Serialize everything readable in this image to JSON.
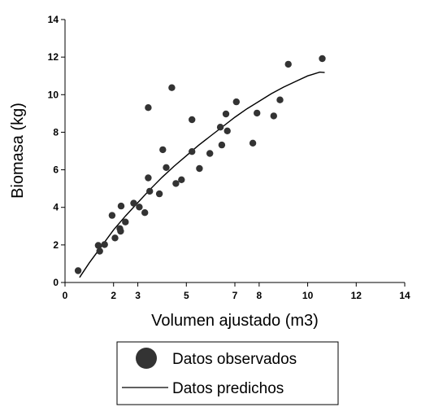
{
  "chart_data": {
    "type": "scatter",
    "title": "",
    "xlabel": "Volumen ajustado (m3)",
    "ylabel": "Biomasa (kg)",
    "xlim": [
      0,
      14
    ],
    "ylim": [
      0,
      14
    ],
    "x_ticks": [
      "0",
      "2",
      "3",
      "5",
      "7",
      "8",
      "10",
      "12",
      "14"
    ],
    "x_tick_values": [
      0,
      2,
      3,
      5,
      7,
      8,
      10,
      12,
      14
    ],
    "y_ticks": [
      "0",
      "2",
      "4",
      "6",
      "8",
      "10",
      "12",
      "14"
    ],
    "y_tick_values": [
      0,
      2,
      4,
      6,
      8,
      10,
      12,
      14
    ],
    "grid": false,
    "legend_position": "bottom-center",
    "series": [
      {
        "name": "Datos observados",
        "kind": "scatter",
        "color": "#333333",
        "points": [
          [
            0.54,
            0.63
          ],
          [
            1.37,
            1.97
          ],
          [
            1.43,
            1.67
          ],
          [
            1.63,
            2.02
          ],
          [
            1.94,
            3.57
          ],
          [
            2.06,
            2.37
          ],
          [
            2.26,
            2.87
          ],
          [
            2.31,
            4.07
          ],
          [
            2.29,
            2.73
          ],
          [
            2.49,
            3.22
          ],
          [
            2.83,
            4.22
          ],
          [
            3.06,
            4.02
          ],
          [
            3.29,
            3.72
          ],
          [
            3.43,
            9.31
          ],
          [
            3.43,
            5.57
          ],
          [
            3.49,
            4.86
          ],
          [
            3.89,
            4.72
          ],
          [
            4.03,
            7.07
          ],
          [
            4.17,
            6.12
          ],
          [
            4.4,
            10.37
          ],
          [
            4.57,
            5.27
          ],
          [
            4.8,
            5.47
          ],
          [
            5.23,
            6.97
          ],
          [
            5.23,
            8.67
          ],
          [
            5.54,
            6.07
          ],
          [
            5.97,
            6.87
          ],
          [
            6.4,
            8.27
          ],
          [
            6.46,
            7.32
          ],
          [
            6.63,
            8.97
          ],
          [
            6.69,
            8.07
          ],
          [
            7.06,
            9.62
          ],
          [
            7.74,
            7.42
          ],
          [
            7.91,
            9.02
          ],
          [
            8.6,
            8.87
          ],
          [
            8.86,
            9.72
          ],
          [
            9.2,
            11.62
          ],
          [
            10.6,
            11.92
          ]
        ]
      },
      {
        "name": "Datos predichos",
        "kind": "line",
        "color": "#000000",
        "points": [
          [
            0.6,
            0.27
          ],
          [
            1.0,
            1.05
          ],
          [
            1.5,
            1.92
          ],
          [
            2.0,
            2.8
          ],
          [
            2.5,
            3.55
          ],
          [
            3.0,
            4.25
          ],
          [
            3.5,
            4.95
          ],
          [
            4.0,
            5.6
          ],
          [
            4.5,
            6.2
          ],
          [
            5.0,
            6.75
          ],
          [
            5.5,
            7.3
          ],
          [
            6.0,
            7.8
          ],
          [
            6.5,
            8.3
          ],
          [
            7.0,
            8.8
          ],
          [
            7.5,
            9.25
          ],
          [
            8.0,
            9.65
          ],
          [
            8.5,
            10.05
          ],
          [
            9.0,
            10.4
          ],
          [
            9.5,
            10.7
          ],
          [
            10.0,
            11.0
          ],
          [
            10.5,
            11.2
          ],
          [
            10.7,
            11.18
          ]
        ]
      }
    ]
  }
}
